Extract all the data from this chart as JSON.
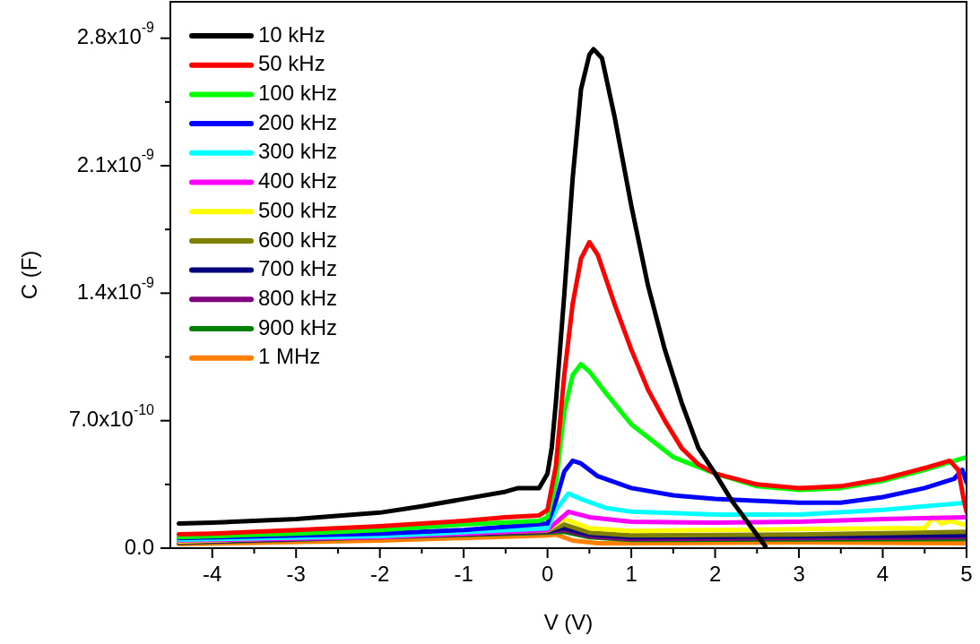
{
  "chart_data": {
    "type": "line",
    "xlabel": "V (V)",
    "ylabel": "C (F)",
    "xlim": [
      -4.5,
      5
    ],
    "ylim": [
      0,
      3e-09
    ],
    "xticks": [
      -4,
      {
        "value": -3.5,
        "label": null
      },
      -3,
      {
        "value": -2.5,
        "label": null
      },
      -2,
      {
        "value": -1.5,
        "label": null
      },
      -1,
      {
        "value": -0.5,
        "label": null
      },
      0,
      {
        "value": 0.5,
        "label": null
      },
      1,
      {
        "value": 1.5,
        "label": null
      },
      2,
      {
        "value": 2.5,
        "label": null
      },
      3,
      {
        "value": 3.5,
        "label": null
      },
      4,
      {
        "value": 4.5,
        "label": null
      },
      5
    ],
    "yticks": [
      {
        "value": 0,
        "label": "0.0"
      },
      {
        "value": 3.5e-10,
        "label": null
      },
      {
        "value": 7e-10,
        "label": "7.0x10$^{-10}$"
      },
      {
        "value": 1.05e-09,
        "label": null
      },
      {
        "value": 1.4e-09,
        "label": "1.4x10$^{-9}$"
      },
      {
        "value": 1.75e-09,
        "label": null
      },
      {
        "value": 2.1e-09,
        "label": "2.1x10$^{-9}$"
      },
      {
        "value": 2.45e-09,
        "label": null
      },
      {
        "value": 2.8e-09,
        "label": "2.8x10$^{-9}$"
      }
    ],
    "grid": false,
    "legend": "top left",
    "marker": "none",
    "line_style": "solid",
    "series": [
      {
        "name": "10 kHz",
        "color": "#000000",
        "x": [
          -4.4,
          -4,
          -3,
          -2,
          -1.5,
          -1,
          -0.5,
          -0.35,
          -0.1,
          0,
          0.05,
          0.1,
          0.2,
          0.3,
          0.4,
          0.5,
          0.55,
          0.65,
          0.8,
          1,
          1.2,
          1.4,
          1.6,
          1.8,
          2,
          2.2,
          2.4,
          2.6
        ],
        "values": [
          1.35e-10,
          1.4e-10,
          1.6e-10,
          1.95e-10,
          2.3e-10,
          2.7e-10,
          3.1e-10,
          3.3e-10,
          3.3e-10,
          4.1e-10,
          5.5e-10,
          8e-10,
          1.39e-09,
          2.03e-09,
          2.52e-09,
          2.71e-09,
          2.74e-09,
          2.69e-09,
          2.37e-09,
          1.88e-09,
          1.44e-09,
          1.09e-09,
          8e-10,
          5.5e-10,
          4.1e-10,
          2.6e-10,
          1.35e-10,
          1e-11
        ]
      },
      {
        "name": "50 kHz",
        "color": "#ff0000",
        "x": [
          -4.4,
          -4,
          -3,
          -2,
          -1,
          -0.5,
          -0.1,
          0,
          0.1,
          0.2,
          0.3,
          0.4,
          0.5,
          0.6,
          0.8,
          1,
          1.2,
          1.4,
          1.6,
          1.8,
          2,
          2.5,
          3,
          3.5,
          4,
          4.5,
          4.8,
          4.9,
          4.97,
          5
        ],
        "values": [
          7.6e-11,
          8e-11,
          1e-10,
          1.2e-10,
          1.5e-10,
          1.7e-10,
          1.8e-10,
          2.1e-10,
          4.5e-10,
          9.5e-10,
          1.34e-09,
          1.59e-09,
          1.68e-09,
          1.61e-09,
          1.34e-09,
          1.09e-09,
          8.7e-10,
          7e-10,
          5.5e-10,
          4.6e-10,
          4.1e-10,
          3.5e-10,
          3.3e-10,
          3.4e-10,
          3.8e-10,
          4.4e-10,
          4.8e-10,
          4.3e-10,
          2.6e-10,
          2e-10
        ]
      },
      {
        "name": "100 kHz",
        "color": "#00ff00",
        "x": [
          -4.4,
          -3,
          -2,
          -1,
          -0.1,
          0,
          0.1,
          0.2,
          0.3,
          0.4,
          0.5,
          0.7,
          1,
          1.5,
          2,
          2.5,
          3,
          3.5,
          4,
          4.5,
          5
        ],
        "values": [
          6e-11,
          8e-11,
          1e-10,
          1.3e-10,
          1.5e-10,
          1.7e-10,
          3.6e-10,
          7.5e-10,
          9.5e-10,
          1.01e-09,
          9.7e-10,
          8.5e-10,
          6.8e-10,
          5e-10,
          4.1e-10,
          3.4e-10,
          3.2e-10,
          3.3e-10,
          3.7e-10,
          4.3e-10,
          5e-10
        ]
      },
      {
        "name": "200 kHz",
        "color": "#0000ff",
        "x": [
          -4.4,
          -2,
          -1,
          0,
          0.1,
          0.2,
          0.3,
          0.4,
          0.6,
          1,
          1.5,
          2,
          3,
          3.5,
          4,
          4.5,
          4.85,
          4.95,
          5
        ],
        "values": [
          5.5e-11,
          8e-11,
          1e-10,
          1.35e-10,
          2.6e-10,
          4.2e-10,
          4.8e-10,
          4.65e-10,
          3.95e-10,
          3.3e-10,
          2.9e-10,
          2.7e-10,
          2.5e-10,
          2.5e-10,
          2.8e-10,
          3.3e-10,
          3.8e-10,
          4.3e-10,
          3.6e-10
        ]
      },
      {
        "name": "300 kHz",
        "color": "#00ffff",
        "x": [
          -4.4,
          -2,
          0,
          0.1,
          0.25,
          0.4,
          0.7,
          1,
          2,
          3,
          4,
          5
        ],
        "values": [
          4.7e-11,
          6.6e-11,
          1.1e-10,
          2.1e-10,
          3e-10,
          2.7e-10,
          2.2e-10,
          2e-10,
          1.85e-10,
          1.85e-10,
          2.1e-10,
          2.5e-10
        ]
      },
      {
        "name": "400 kHz",
        "color": "#ff00ff",
        "x": [
          -4.4,
          -2,
          0,
          0.25,
          0.5,
          1,
          2,
          3,
          4,
          5
        ],
        "values": [
          4.2e-11,
          6e-11,
          1e-10,
          2e-10,
          1.7e-10,
          1.45e-10,
          1.4e-10,
          1.45e-10,
          1.6e-10,
          1.7e-10
        ]
      },
      {
        "name": "500 kHz",
        "color": "#ffff00",
        "x": [
          -4.4,
          0,
          0.2,
          0.5,
          1,
          2,
          3,
          4,
          4.5,
          4.6,
          4.7,
          4.8,
          5
        ],
        "values": [
          3.7e-11,
          1e-10,
          1.6e-10,
          1.1e-10,
          9.5e-11,
          1e-10,
          1.05e-10,
          1.1e-10,
          1.1e-10,
          1.7e-10,
          1.35e-10,
          1.5e-10,
          1.25e-10
        ]
      },
      {
        "name": "600 kHz",
        "color": "#808000",
        "x": [
          -4.4,
          0,
          0.2,
          0.5,
          1,
          3,
          5
        ],
        "values": [
          3.5e-11,
          9.5e-11,
          1.3e-10,
          8.5e-11,
          7e-11,
          7.5e-11,
          9e-11
        ]
      },
      {
        "name": "700 kHz",
        "color": "#000080",
        "x": [
          -4.4,
          0,
          0.2,
          0.5,
          1,
          3,
          5
        ],
        "values": [
          3.3e-11,
          9.3e-11,
          1.1e-10,
          7.5e-11,
          6e-11,
          6.5e-11,
          7e-11
        ]
      },
      {
        "name": "800 kHz",
        "color": "#800080",
        "x": [
          -4.4,
          0,
          0.2,
          0.5,
          1,
          3,
          5
        ],
        "values": [
          3.1e-11,
          9e-11,
          1e-10,
          6.5e-11,
          5e-11,
          5.5e-11,
          6e-11
        ]
      },
      {
        "name": "900 kHz",
        "color": "#008000",
        "x": [
          -4.4,
          0,
          0.2,
          0.5,
          1,
          3,
          5
        ],
        "values": [
          2.9e-11,
          8.5e-11,
          9e-11,
          6e-11,
          4.5e-11,
          4.8e-11,
          5e-11
        ]
      },
      {
        "name": "1 MHz",
        "color": "#ff8000",
        "x": [
          -4.4,
          -2,
          0,
          0.1,
          0.3,
          0.6,
          1,
          3,
          5
        ],
        "values": [
          2.2e-11,
          4.2e-11,
          7e-11,
          7.5e-11,
          4.2e-11,
          2.7e-11,
          2.7e-11,
          3.2e-11,
          2.7e-11
        ]
      }
    ]
  }
}
